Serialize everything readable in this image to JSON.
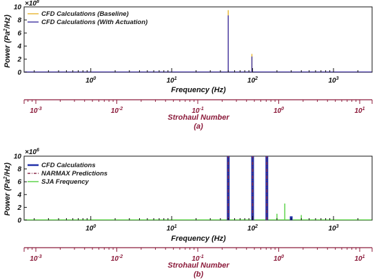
{
  "colors": {
    "baseline": "#e8b93a",
    "actuation": "#4b3fa6",
    "cfd": "#1f2fa8",
    "narmax": "#8b2d4b",
    "sja": "#5ed34a",
    "strouhal_axis": "#8b1a3a",
    "frame": "#111111"
  },
  "chart_data": [
    {
      "type": "line",
      "panel_label": "(a)",
      "xlabel": "Frequency (Hz)",
      "ylabel": "Power (Pa²/Hz)",
      "ylabel_parts": {
        "pre": "Power (Pa",
        "sup": "2",
        "post": "/Hz)"
      },
      "y_exponent": {
        "base": "×10",
        "exp": "8"
      },
      "x_scale": "log",
      "xlim": [
        0.15,
        3000
      ],
      "ylim": [
        0,
        10
      ],
      "yticks": [
        0,
        2,
        4,
        6,
        8,
        10
      ],
      "xticks": [
        {
          "value": 1,
          "base": "10",
          "exp": "0"
        },
        {
          "value": 10,
          "base": "10",
          "exp": "1"
        },
        {
          "value": 100,
          "base": "10",
          "exp": "2"
        },
        {
          "value": 1000,
          "base": "10",
          "exp": "3"
        }
      ],
      "secondary_axis": {
        "label": "Strohaul Number",
        "ticks": [
          {
            "base": "10",
            "exp": "-3"
          },
          {
            "base": "10",
            "exp": "-2"
          },
          {
            "base": "10",
            "exp": "-1"
          },
          {
            "base": "10",
            "exp": "0"
          },
          {
            "base": "10",
            "exp": "1"
          }
        ]
      },
      "legend_position": "top-left",
      "grid": false,
      "series": [
        {
          "name": "CFD Calculations (Baseline)",
          "color_key": "baseline",
          "x": [
            50,
            98
          ],
          "y": [
            9.5,
            2.8
          ]
        },
        {
          "name": "CFD Calculations (With Actuation)",
          "color_key": "actuation",
          "x": [
            50,
            98
          ],
          "y": [
            8.7,
            2.4
          ]
        }
      ]
    },
    {
      "type": "line",
      "panel_label": "(b)",
      "xlabel": "Frequency (Hz)",
      "ylabel": "Power (Pa²/Hz)",
      "ylabel_parts": {
        "pre": "Power (Pa",
        "sup": "2",
        "post": "/Hz)"
      },
      "y_exponent": {
        "base": "×10",
        "exp": "6"
      },
      "x_scale": "log",
      "xlim": [
        0.15,
        3000
      ],
      "ylim": [
        0,
        10
      ],
      "yticks": [
        0,
        2,
        4,
        6,
        8,
        10
      ],
      "xticks": [
        {
          "value": 1,
          "base": "10",
          "exp": "0"
        },
        {
          "value": 10,
          "base": "10",
          "exp": "1"
        },
        {
          "value": 100,
          "base": "10",
          "exp": "2"
        },
        {
          "value": 1000,
          "base": "10",
          "exp": "3"
        }
      ],
      "secondary_axis": {
        "label": "Strohaul Number",
        "ticks": [
          {
            "base": "10",
            "exp": "-3"
          },
          {
            "base": "10",
            "exp": "-2"
          },
          {
            "base": "10",
            "exp": "-1"
          },
          {
            "base": "10",
            "exp": "0"
          },
          {
            "base": "10",
            "exp": "1"
          }
        ]
      },
      "legend_position": "top-left",
      "grid": false,
      "series": [
        {
          "name": "CFD Calculations",
          "color_key": "cfd",
          "style": "solid",
          "x": [
            50,
            100,
            150,
            300
          ],
          "y": [
            10,
            10,
            10,
            0.6
          ]
        },
        {
          "name": "NARMAX Predictions",
          "color_key": "narmax",
          "style": "dashdot",
          "x": [
            50,
            100,
            150
          ],
          "y": [
            10,
            10,
            10
          ]
        },
        {
          "name": "SJA Frequency",
          "color_key": "sja",
          "style": "solid",
          "x": [
            200,
            250,
            400
          ],
          "y": [
            1.0,
            2.6,
            0.8
          ]
        }
      ]
    }
  ]
}
